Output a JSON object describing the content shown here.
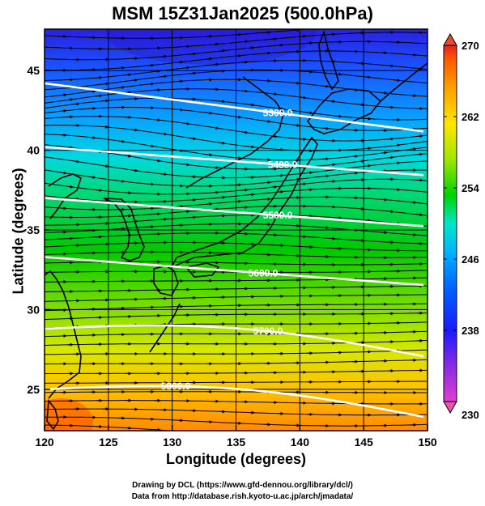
{
  "title": "MSM 15Z31Jan2025 (500.0hPa)",
  "xlabel": "Longitude (degrees)",
  "ylabel": "Latitude  (degrees)",
  "credits": [
    "Drawing by DCL (https://www.gfd-dennou.org/library/dcl/)",
    "Data from http://database.rish.kyoto-u.ac.jp/arch/jmadata/"
  ],
  "chart_data": {
    "type": "heatmap",
    "variable": "temperature",
    "level": "500.0hPa",
    "xlim": [
      120,
      150
    ],
    "ylim": [
      22.4,
      47.6
    ],
    "x_ticks": [
      120,
      125,
      130,
      135,
      140,
      145,
      150
    ],
    "y_ticks": [
      25,
      30,
      35,
      40,
      45
    ],
    "colorbar": {
      "min": 230,
      "max": 270,
      "ticks": [
        230,
        238,
        246,
        254,
        262,
        270
      ],
      "colors": [
        "#e040d0",
        "#8a2be2",
        "#1a1aff",
        "#0064ff",
        "#00b4ff",
        "#00e6c8",
        "#00d200",
        "#a0e600",
        "#ffe600",
        "#ffa000",
        "#ff5a00",
        "#e62020"
      ]
    },
    "height_contours": [
      {
        "label": "5300.0",
        "lat": 44.2
      },
      {
        "label": "5400.0",
        "lat": 40.2
      },
      {
        "label": "5500.0",
        "lat": 37.0
      },
      {
        "label": "5600.0",
        "lat": 33.3
      },
      {
        "label": "5700.0",
        "lat": 28.8
      },
      {
        "label": "5800.0",
        "lat": 25.0
      }
    ],
    "wind": "westerly streamlines"
  }
}
